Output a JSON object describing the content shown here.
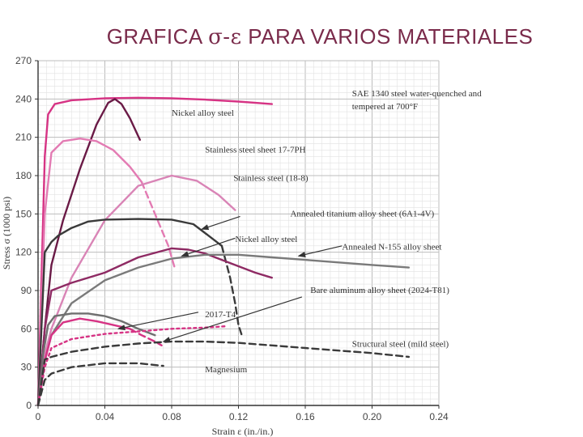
{
  "page": {
    "title_parts": [
      "GRAFICA ",
      "σ-ε",
      " PARA VARIOS MATERIALES"
    ]
  },
  "chart_data": {
    "type": "line",
    "xlabel": "Strain ε (in./in.)",
    "ylabel": "Stress σ (1000 psi)",
    "xlim": [
      0,
      0.24
    ],
    "ylim": [
      0,
      270
    ],
    "x_ticks": [
      "0",
      "0.04",
      "0.08",
      "0.12",
      "0.16",
      "0.20",
      "0.24"
    ],
    "y_ticks": [
      "0",
      "30",
      "60",
      "90",
      "120",
      "150",
      "180",
      "210",
      "240",
      "270"
    ],
    "grid": true,
    "series": [
      {
        "name": "SAE 1340 steel water-quenched and tempered at 700°F",
        "color": "#d63384",
        "dash": "solid",
        "x": [
          0,
          0.004,
          0.006,
          0.01,
          0.02,
          0.04,
          0.06,
          0.08,
          0.1,
          0.12,
          0.14
        ],
        "y": [
          0,
          195,
          228,
          236,
          239,
          240.5,
          241,
          240.5,
          239.5,
          238,
          236
        ]
      },
      {
        "name": "Nickel alloy steel",
        "color": "#6a1a46",
        "dash": "solid",
        "x": [
          0,
          0.004,
          0.008,
          0.015,
          0.025,
          0.035,
          0.042,
          0.046,
          0.05,
          0.055,
          0.061
        ],
        "y": [
          0,
          60,
          110,
          145,
          185,
          220,
          237,
          240,
          236,
          225,
          208
        ]
      },
      {
        "name": "Stainless steel sheet 17-7PH",
        "color": "#e37bb3",
        "dash": "solid",
        "x": [
          0,
          0.004,
          0.008,
          0.015,
          0.025,
          0.035,
          0.045,
          0.055,
          0.062
        ],
        "y": [
          0,
          150,
          198,
          207,
          209,
          207,
          200,
          187,
          175
        ]
      },
      {
        "name": "Stainless steel sheet 17-7PH (fracture)",
        "color": "#e37bb3",
        "dash": "dashed",
        "x": [
          0.062,
          0.07,
          0.078,
          0.082
        ],
        "y": [
          175,
          150,
          125,
          107
        ]
      },
      {
        "name": "Stainless steel (18-8)",
        "color": "#d984b6",
        "dash": "solid",
        "x": [
          0,
          0.004,
          0.008,
          0.02,
          0.04,
          0.06,
          0.08,
          0.095,
          0.108,
          0.118
        ],
        "y": [
          0,
          40,
          60,
          100,
          145,
          172,
          180,
          176,
          165,
          153
        ]
      },
      {
        "name": "Annealed titanium alloy sheet (6A1-4V)",
        "color": "#3a3a3a",
        "dash": "solid",
        "x": [
          0,
          0.004,
          0.008,
          0.012,
          0.02,
          0.03,
          0.04,
          0.06,
          0.08,
          0.093,
          0.1,
          0.11
        ],
        "y": [
          0,
          120,
          128,
          133,
          139,
          144,
          145.5,
          146,
          145.5,
          142,
          135,
          125
        ]
      },
      {
        "name": "Annealed titanium alloy sheet (6A1-4V) (fracture)",
        "color": "#3a3a3a",
        "dash": "dashed",
        "x": [
          0.11,
          0.115,
          0.118,
          0.12,
          0.122
        ],
        "y": [
          125,
          100,
          80,
          63,
          55
        ]
      },
      {
        "name": "Nickel alloy steel (lower curve)",
        "color": "#8e2a63",
        "dash": "solid",
        "x": [
          0,
          0.004,
          0.008,
          0.02,
          0.04,
          0.06,
          0.08,
          0.09,
          0.1,
          0.11,
          0.12,
          0.13,
          0.14
        ],
        "y": [
          0,
          60,
          90,
          96,
          104,
          116,
          123,
          122,
          119,
          114,
          109,
          104,
          100
        ]
      },
      {
        "name": "Annealed N-155 alloy sheet",
        "color": "#7a7a7a",
        "dash": "solid",
        "x": [
          0,
          0.004,
          0.008,
          0.02,
          0.04,
          0.06,
          0.08,
          0.1,
          0.12,
          0.14,
          0.16,
          0.18,
          0.2,
          0.222
        ],
        "y": [
          0,
          35,
          55,
          80,
          98,
          108,
          115,
          118,
          118,
          116,
          114,
          112,
          110,
          108
        ]
      },
      {
        "name": "Bare aluminum alloy sheet (2024-T81)",
        "color": "#6f6f6f",
        "dash": "solid",
        "x": [
          0,
          0.003,
          0.006,
          0.01,
          0.02,
          0.03,
          0.04,
          0.05,
          0.06,
          0.07
        ],
        "y": [
          0,
          40,
          63,
          70,
          72,
          72,
          70,
          66,
          60,
          55
        ]
      },
      {
        "name": "2017-T4",
        "color": "#d63384",
        "dash": "solid",
        "x": [
          0,
          0.004,
          0.008,
          0.015,
          0.025,
          0.035,
          0.045,
          0.055
        ],
        "y": [
          0,
          35,
          55,
          65,
          68,
          66,
          63,
          60
        ]
      },
      {
        "name": "2017-T4 (fracture)",
        "color": "#d63384",
        "dash": "dashed",
        "x": [
          0.055,
          0.062,
          0.07,
          0.074
        ],
        "y": [
          60,
          55,
          50,
          47
        ]
      },
      {
        "name": "2017-T4 (lower)",
        "color": "#d63384",
        "dash": "dotted",
        "x": [
          0,
          0.004,
          0.008,
          0.02,
          0.04,
          0.06,
          0.08,
          0.1,
          0.112
        ],
        "y": [
          0,
          30,
          45,
          52,
          56,
          58,
          60,
          61,
          62
        ]
      },
      {
        "name": "Structural steel (mild steel)",
        "color": "#3a3a3a",
        "dash": "dashed",
        "x": [
          0,
          0.004,
          0.008,
          0.02,
          0.04,
          0.06,
          0.08,
          0.1,
          0.12,
          0.14,
          0.16,
          0.18,
          0.2,
          0.222
        ],
        "y": [
          0,
          36,
          38,
          42,
          46,
          48.5,
          50,
          50,
          49,
          47,
          45,
          43,
          41,
          38
        ]
      },
      {
        "name": "Magnesium",
        "color": "#3a3a3a",
        "dash": "dashed",
        "x": [
          0,
          0.004,
          0.008,
          0.02,
          0.04,
          0.06,
          0.075
        ],
        "y": [
          0,
          20,
          25,
          30,
          33,
          33,
          31
        ]
      }
    ],
    "annotations": [
      {
        "text": "SAE 1340 steel water-quenched and",
        "x": 0.188,
        "y": 242
      },
      {
        "text": "tempered at 700°F",
        "x": 0.188,
        "y": 232
      },
      {
        "text": "Nickel alloy steel",
        "x": 0.08,
        "y": 227
      },
      {
        "text": "Stainless steel sheet 17-7PH",
        "x": 0.1,
        "y": 198
      },
      {
        "text": "Stainless steel (18-8)",
        "x": 0.117,
        "y": 176
      },
      {
        "text": "Annealed titanium alloy sheet (6A1-4V)",
        "x": 0.151,
        "y": 148
      },
      {
        "text": "Nickel alloy steel",
        "x": 0.118,
        "y": 128
      },
      {
        "text": "Annealed N-155 alloy sheet",
        "x": 0.182,
        "y": 122
      },
      {
        "text": "Bare aluminum alloy sheet (2024-T81)",
        "x": 0.163,
        "y": 88
      },
      {
        "text": "2017-T4",
        "x": 0.1,
        "y": 69
      },
      {
        "text": "Structural steel (mild steel)",
        "x": 0.188,
        "y": 46
      },
      {
        "text": "Magnesium",
        "x": 0.1,
        "y": 26
      }
    ],
    "arrows": [
      {
        "from": [
          0.121,
          148
        ],
        "to": [
          0.098,
          138
        ]
      },
      {
        "from": [
          0.118,
          131
        ],
        "to": [
          0.086,
          117
        ]
      },
      {
        "from": [
          0.158,
          85
        ],
        "to": [
          0.075,
          50
        ]
      },
      {
        "from": [
          0.096,
          73
        ],
        "to": [
          0.048,
          60
        ]
      },
      {
        "from": [
          0.182,
          125
        ],
        "to": [
          0.156,
          117
        ]
      }
    ]
  }
}
